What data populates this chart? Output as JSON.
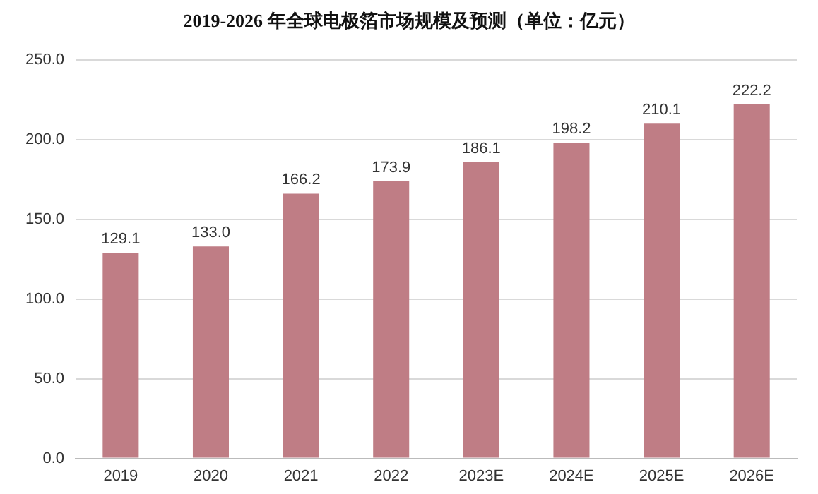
{
  "chart_data": {
    "type": "bar",
    "title": "2019-2026 年全球电极箔市场规模及预测（单位：亿元）",
    "categories": [
      "2019",
      "2020",
      "2021",
      "2022",
      "2023E",
      "2024E",
      "2025E",
      "2026E"
    ],
    "values": [
      129.1,
      133.0,
      166.2,
      173.9,
      186.1,
      198.2,
      210.1,
      222.2
    ],
    "color": "#bf7d85",
    "ylim": [
      0,
      250
    ],
    "yticks": [
      {
        "value": 0,
        "label": "0.0"
      },
      {
        "value": 50,
        "label": "50.0"
      },
      {
        "value": 100,
        "label": "100.0"
      },
      {
        "value": 150,
        "label": "150.0"
      },
      {
        "value": 200,
        "label": "200.0"
      },
      {
        "value": 250,
        "label": "250.0"
      }
    ],
    "value_labels": [
      "129.1",
      "133.0",
      "166.2",
      "173.9",
      "186.1",
      "198.2",
      "210.1",
      "222.2"
    ],
    "grid": "y",
    "legend": false
  }
}
